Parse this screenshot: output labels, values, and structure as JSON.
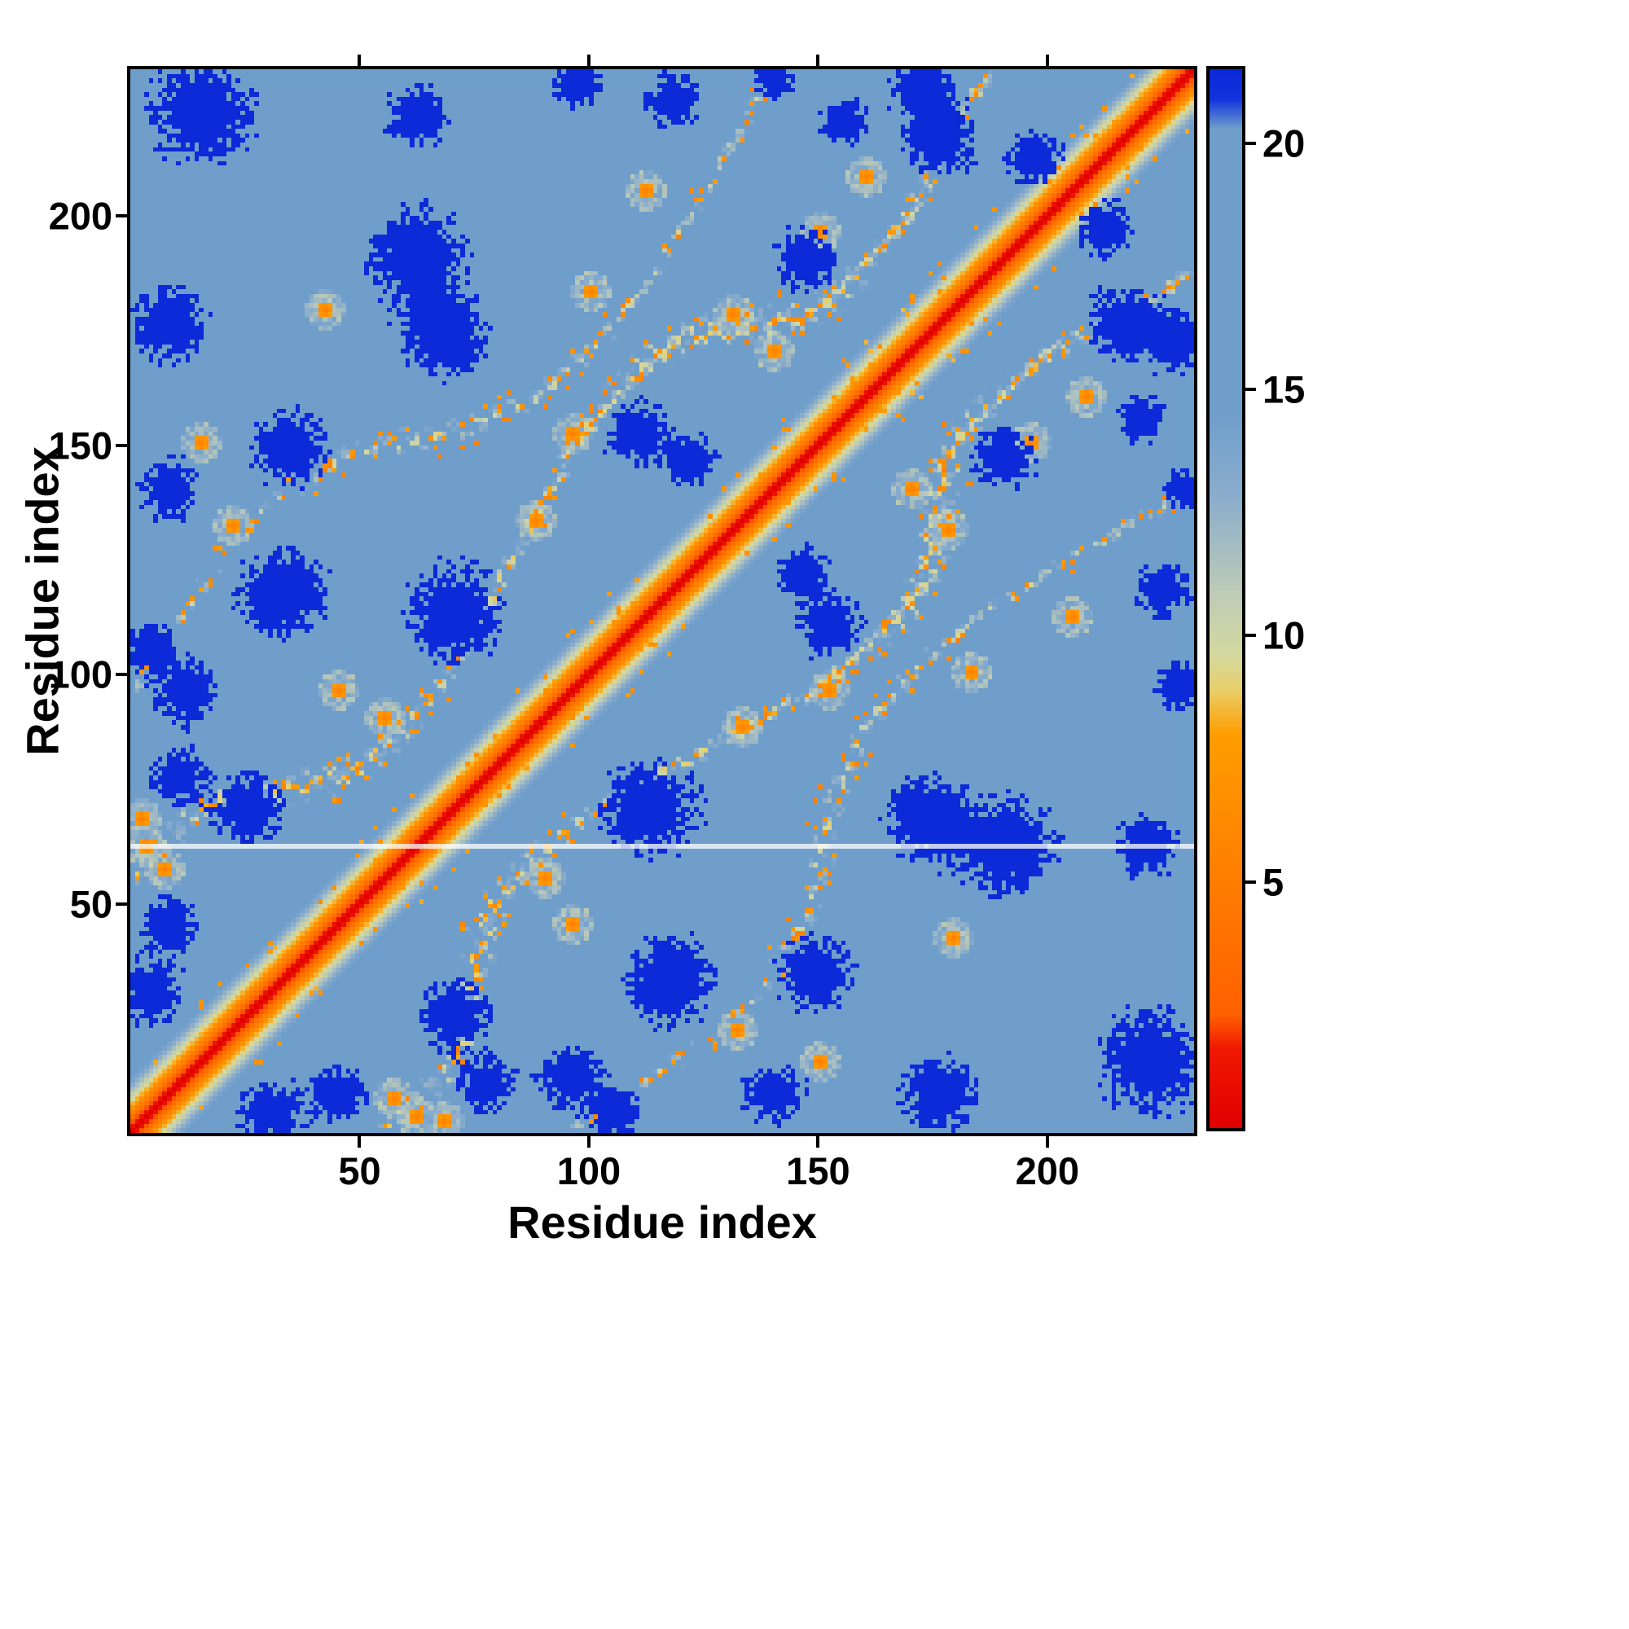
{
  "figure": {
    "background": "#ffffff",
    "axis_color": "#000000"
  },
  "chart_data": {
    "type": "heatmap",
    "title": "",
    "xlabel": "Residue index",
    "ylabel": "Residue index",
    "x_range": [
      0,
      232
    ],
    "y_range": [
      0,
      232
    ],
    "x_ticks": [
      50,
      100,
      150,
      200
    ],
    "y_ticks": [
      50,
      100,
      150,
      200
    ],
    "colorbar": {
      "vmin": 0,
      "vmax": 21.5,
      "ticks": [
        5,
        10,
        15,
        20
      ]
    },
    "colormap_stops": [
      [
        0,
        "#e00000"
      ],
      [
        1.6,
        "#f01800"
      ],
      [
        2.3,
        "#ff6000"
      ],
      [
        8.0,
        "#ff9d00"
      ],
      [
        8.9,
        "#e8cf6a"
      ],
      [
        9.6,
        "#d4d89e"
      ],
      [
        10.8,
        "#bfccb6"
      ],
      [
        12.8,
        "#8badcc"
      ],
      [
        14.5,
        "#6f9ecb"
      ],
      [
        20.3,
        "#6f9ecb"
      ],
      [
        20.9,
        "#1233de"
      ],
      [
        21.5,
        "#0b28d6"
      ]
    ],
    "background_value": 19.4,
    "diagonal_profile": [
      [
        0,
        0
      ],
      [
        2,
        2.2
      ],
      [
        6,
        8.4
      ],
      [
        12,
        15.0
      ],
      [
        20,
        19.4
      ],
      [
        232,
        19.4
      ]
    ],
    "bands": [
      {
        "offset": 42,
        "amp": 14,
        "period": 16,
        "phase": 1.1,
        "width": 7,
        "depth": 10
      },
      {
        "offset": 88,
        "amp": 18,
        "period": 23,
        "phase": 0.4,
        "width": 6,
        "depth": 8
      }
    ],
    "hotspots": [
      [
        3,
        62
      ],
      [
        7,
        57
      ],
      [
        2,
        68
      ],
      [
        42,
        179
      ],
      [
        45,
        96
      ],
      [
        55,
        90
      ],
      [
        88,
        133
      ],
      [
        96,
        152
      ],
      [
        100,
        183
      ],
      [
        112,
        205
      ],
      [
        131,
        178
      ],
      [
        150,
        196
      ],
      [
        160,
        208
      ],
      [
        140,
        170
      ],
      [
        15,
        150
      ],
      [
        22,
        132
      ]
    ],
    "blobs": [
      [
        15,
        222,
        15
      ],
      [
        62,
        221,
        9
      ],
      [
        97,
        228,
        7
      ],
      [
        118,
        225,
        8
      ],
      [
        140,
        229,
        6
      ],
      [
        155,
        220,
        7
      ],
      [
        176,
        216,
        11
      ],
      [
        197,
        212,
        8
      ],
      [
        8,
        176,
        11
      ],
      [
        4,
        105,
        7
      ],
      [
        34,
        149,
        11
      ],
      [
        33,
        117,
        13
      ],
      [
        62,
        191,
        14
      ],
      [
        70,
        113,
        14
      ],
      [
        110,
        152,
        9
      ],
      [
        122,
        146,
        7
      ],
      [
        147,
        190,
        9
      ],
      [
        68,
        173,
        12
      ],
      [
        172,
        228,
        8
      ],
      [
        25,
        70,
        10
      ],
      [
        10,
        77,
        8
      ],
      [
        4,
        30,
        9
      ],
      [
        8,
        45,
        8
      ],
      [
        12,
        95,
        9
      ],
      [
        8,
        140,
        9
      ]
    ],
    "highlight_row": 62
  }
}
